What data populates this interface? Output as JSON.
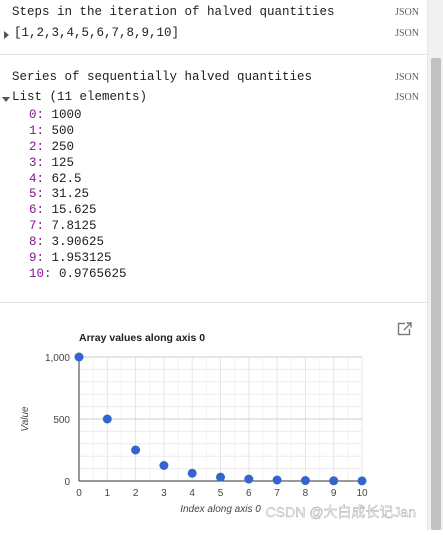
{
  "output1": {
    "title": "Steps in the iteration of halved quantities",
    "json_label": "JSON",
    "value_text": "[1,2,3,4,5,6,7,8,9,10]",
    "value_json_label": "JSON"
  },
  "output2": {
    "title": "Series of sequentially halved quantities",
    "json_label": "JSON",
    "list_header": "List (11 elements)",
    "list_json_label": "JSON",
    "items": [
      {
        "key": "0:",
        "value": "1000"
      },
      {
        "key": "1:",
        "value": "500"
      },
      {
        "key": "2:",
        "value": "250"
      },
      {
        "key": "3:",
        "value": "125"
      },
      {
        "key": "4:",
        "value": "62.5"
      },
      {
        "key": "5:",
        "value": "31.25"
      },
      {
        "key": "6:",
        "value": "15.625"
      },
      {
        "key": "7:",
        "value": "7.8125"
      },
      {
        "key": "8:",
        "value": "3.90625"
      },
      {
        "key": "9:",
        "value": "1.953125"
      },
      {
        "key": "10:",
        "value": "0.9765625"
      }
    ]
  },
  "chart": {
    "expand_icon": "open-in-new-icon",
    "watermark": "CSDN @大白成长记Jan"
  },
  "chart_data": {
    "type": "scatter",
    "title": "Array values along axis 0",
    "xlabel": "Index along axis 0",
    "ylabel": "Value",
    "x": [
      0,
      1,
      2,
      3,
      4,
      5,
      6,
      7,
      8,
      9,
      10
    ],
    "y": [
      1000,
      500,
      250,
      125,
      62.5,
      31.25,
      15.625,
      7.8125,
      3.90625,
      1.953125,
      0.9765625
    ],
    "xlim": [
      0,
      10
    ],
    "ylim": [
      0,
      1000
    ],
    "xticks": [
      "0",
      "1",
      "2",
      "3",
      "4",
      "5",
      "6",
      "7",
      "8",
      "9",
      "10"
    ],
    "yticks": [
      {
        "value": 0,
        "label": "0"
      },
      {
        "value": 500,
        "label": "500"
      },
      {
        "value": 1000,
        "label": "1,000"
      }
    ],
    "grid": true,
    "color": "#3366cc"
  }
}
